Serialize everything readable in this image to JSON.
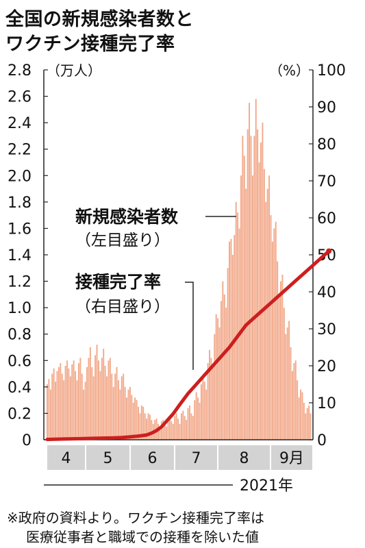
{
  "title_lines": [
    "全国の新規感染者数と",
    "ワクチン接種完了率"
  ],
  "notes": [
    "※政府の資料より。ワクチン接種完了率は",
    "医療従事者と職域での接種を除いた値"
  ],
  "colors": {
    "cases_bar": "#F2A98A",
    "vaccine_line": "#CC1F1F",
    "month_band": "#D3D3D3"
  },
  "chart_data": {
    "type": "bar",
    "left_axis": {
      "unit_label": "（万人）",
      "ticks": [
        "0",
        "0.2",
        "0.4",
        "0.6",
        "0.8",
        "1.0",
        "1.2",
        "1.4",
        "1.6",
        "1.8",
        "2.0",
        "2.2",
        "2.4",
        "2.6",
        "2.8"
      ],
      "ylim": [
        0,
        2.8
      ]
    },
    "right_axis": {
      "unit_label": "（%）",
      "ticks": [
        "0",
        "10",
        "20",
        "30",
        "40",
        "50",
        "60",
        "70",
        "80",
        "90",
        "100"
      ],
      "ylim": [
        0,
        100
      ]
    },
    "x_month_labels": [
      "4",
      "5",
      "6",
      "7",
      "8",
      "9月"
    ],
    "x_year_label": "2021年",
    "series": [
      {
        "name": "新規感染者数",
        "axis_note": "（左目盛り）",
        "type": "bar",
        "axis": "left",
        "values": [
          0.42,
          0.46,
          0.38,
          0.5,
          0.54,
          0.44,
          0.52,
          0.55,
          0.58,
          0.5,
          0.45,
          0.56,
          0.6,
          0.54,
          0.48,
          0.57,
          0.6,
          0.52,
          0.45,
          0.58,
          0.62,
          0.5,
          0.38,
          0.44,
          0.55,
          0.62,
          0.7,
          0.55,
          0.48,
          0.64,
          0.72,
          0.6,
          0.52,
          0.62,
          0.69,
          0.56,
          0.48,
          0.6,
          0.62,
          0.5,
          0.4,
          0.5,
          0.55,
          0.45,
          0.38,
          0.48,
          0.5,
          0.4,
          0.32,
          0.38,
          0.4,
          0.34,
          0.28,
          0.32,
          0.3,
          0.25,
          0.2,
          0.26,
          0.25,
          0.2,
          0.16,
          0.2,
          0.19,
          0.15,
          0.12,
          0.15,
          0.16,
          0.12,
          0.1,
          0.14,
          0.15,
          0.12,
          0.1,
          0.15,
          0.18,
          0.14,
          0.12,
          0.18,
          0.2,
          0.16,
          0.12,
          0.2,
          0.22,
          0.18,
          0.15,
          0.24,
          0.26,
          0.2,
          0.18,
          0.3,
          0.36,
          0.32,
          0.28,
          0.42,
          0.48,
          0.44,
          0.38,
          0.58,
          0.68,
          0.62,
          0.56,
          0.8,
          0.95,
          0.92,
          0.85,
          1.05,
          1.2,
          1.1,
          1.0,
          1.3,
          1.5,
          1.52,
          1.4,
          1.55,
          1.8,
          1.72,
          1.6,
          2.0,
          2.3,
          2.15,
          1.9,
          2.35,
          2.55,
          2.3,
          2.0,
          2.3,
          2.58,
          2.35,
          2.1,
          2.25,
          2.4,
          2.05,
          1.8,
          1.9,
          2.0,
          1.7,
          1.5,
          1.6,
          1.65,
          1.35,
          1.1,
          1.2,
          1.25,
          1.0,
          0.8,
          0.85,
          0.9,
          0.7,
          0.52,
          0.58,
          0.6,
          0.45,
          0.32,
          0.38,
          0.36,
          0.28,
          0.2,
          0.24,
          0.26,
          0.2
        ]
      },
      {
        "name": "接種完了率",
        "axis_note": "（右目盛り）",
        "type": "line",
        "axis": "right",
        "points": [
          [
            0,
            0.1
          ],
          [
            10,
            0.2
          ],
          [
            20,
            0.3
          ],
          [
            30,
            0.4
          ],
          [
            40,
            0.5
          ],
          [
            45,
            0.6
          ],
          [
            50,
            0.8
          ],
          [
            55,
            1.0
          ],
          [
            60,
            1.3
          ],
          [
            63,
            1.8
          ],
          [
            66,
            2.5
          ],
          [
            69,
            3.5
          ],
          [
            72,
            5
          ],
          [
            76,
            7
          ],
          [
            80,
            9.5
          ],
          [
            85,
            12.5
          ],
          [
            90,
            15
          ],
          [
            95,
            17.5
          ],
          [
            100,
            20
          ],
          [
            105,
            22.5
          ],
          [
            110,
            25
          ],
          [
            115,
            28
          ],
          [
            120,
            31
          ],
          [
            125,
            33
          ],
          [
            130,
            35
          ],
          [
            135,
            37
          ],
          [
            140,
            39
          ],
          [
            145,
            41
          ],
          [
            150,
            43
          ],
          [
            155,
            45
          ],
          [
            160,
            47
          ],
          [
            165,
            49
          ],
          [
            170,
            51
          ]
        ]
      }
    ],
    "grid": false,
    "legend": "inline-annotations"
  }
}
